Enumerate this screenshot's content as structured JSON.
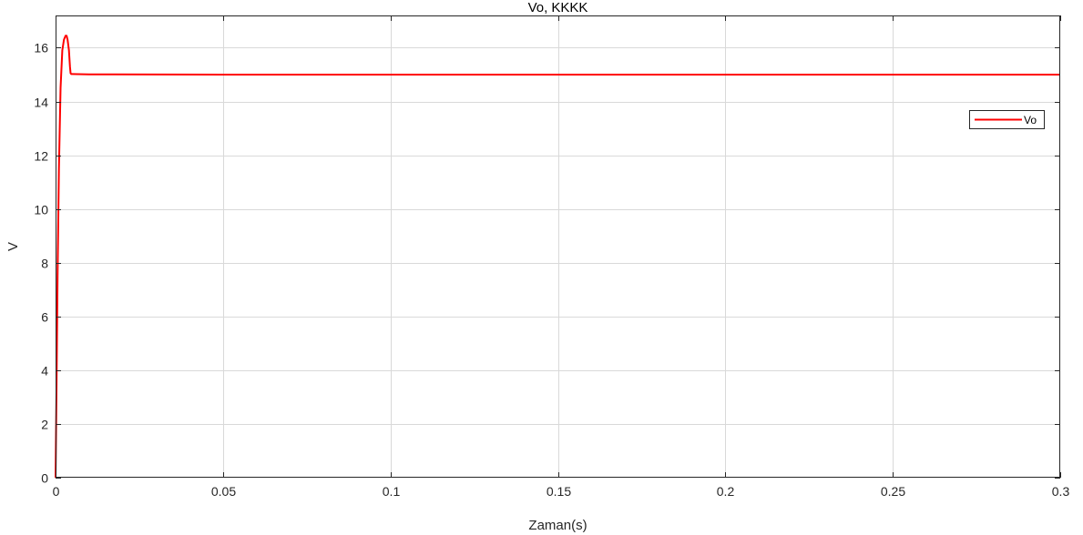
{
  "chart_data": {
    "type": "line",
    "title": "Vo, KKKK",
    "xlabel": "Zaman(s)",
    "ylabel": "V",
    "xlim": [
      0,
      0.3
    ],
    "ylim": [
      0,
      17.2
    ],
    "x_ticks": [
      0,
      0.05,
      0.1,
      0.15,
      0.2,
      0.25,
      0.3
    ],
    "x_tick_labels": [
      "0",
      "0.05",
      "0.1",
      "0.15",
      "0.2",
      "0.25",
      "0.3"
    ],
    "y_ticks": [
      0,
      2,
      4,
      6,
      8,
      10,
      12,
      14,
      16
    ],
    "y_tick_labels": [
      "0",
      "2",
      "4",
      "6",
      "8",
      "10",
      "12",
      "14",
      "16"
    ],
    "grid": true,
    "legend_position": "top-right",
    "series": [
      {
        "name": "Vo",
        "color": "#ff0000",
        "x": [
          0,
          0.0003,
          0.0006,
          0.001,
          0.0015,
          0.002,
          0.0025,
          0.003,
          0.0033,
          0.0036,
          0.004,
          0.0043,
          0.0045,
          0.0047,
          0.005,
          0.01,
          0.05,
          0.1,
          0.15,
          0.2,
          0.25,
          0.3
        ],
        "y": [
          0,
          3.5,
          7.5,
          11.5,
          14.5,
          15.9,
          16.3,
          16.45,
          16.45,
          16.3,
          15.9,
          15.3,
          15.05,
          15.02,
          15.02,
          15.01,
          15.0,
          15.0,
          15.0,
          15.0,
          15.0,
          15.0
        ]
      }
    ]
  }
}
